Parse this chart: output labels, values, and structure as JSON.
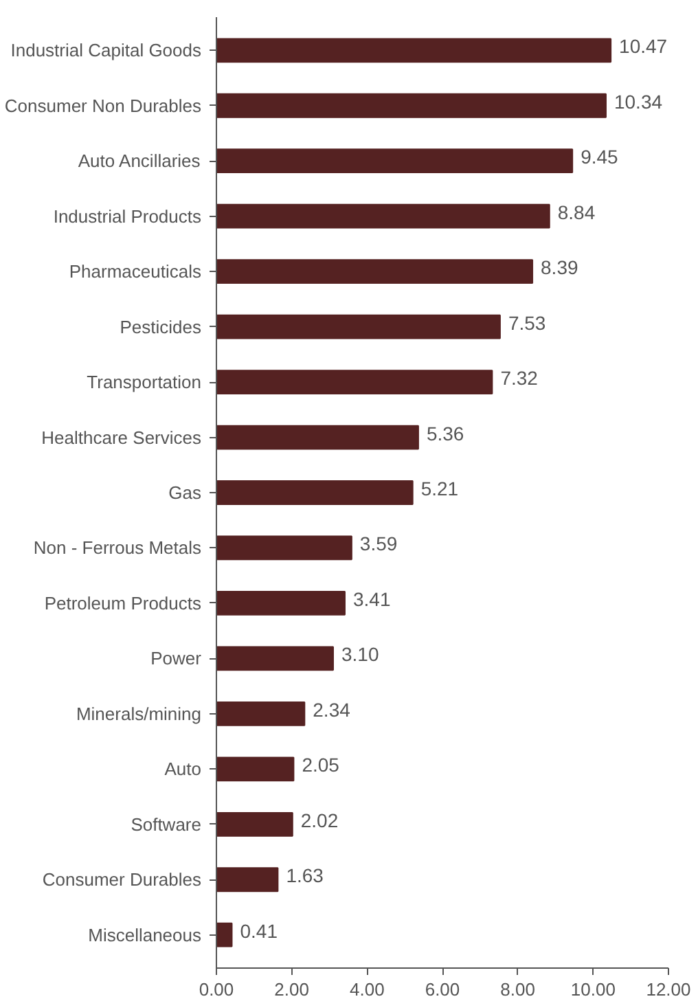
{
  "chart_data": {
    "type": "bar",
    "orientation": "horizontal",
    "categories": [
      "Industrial Capital Goods",
      "Consumer Non Durables",
      "Auto Ancillaries",
      "Industrial Products",
      "Pharmaceuticals",
      "Pesticides",
      "Transportation",
      "Healthcare Services",
      "Gas",
      "Non - Ferrous Metals",
      "Petroleum Products",
      "Power",
      "Minerals/mining",
      "Auto",
      "Software",
      "Consumer Durables",
      "Miscellaneous"
    ],
    "values": [
      10.47,
      10.34,
      9.45,
      8.84,
      8.39,
      7.53,
      7.32,
      5.36,
      5.21,
      3.59,
      3.41,
      3.1,
      2.34,
      2.05,
      2.02,
      1.63,
      0.41
    ],
    "value_labels": [
      "10.47",
      "10.34",
      "9.45",
      "8.84",
      "8.39",
      "7.53",
      "7.32",
      "5.36",
      "5.21",
      "3.59",
      "3.41",
      "3.10",
      "2.34",
      "2.05",
      "2.02",
      "1.63",
      "0.41"
    ],
    "color": "#552222",
    "xlim": [
      0,
      12
    ],
    "xticks": [
      {
        "value": 0,
        "label": "0.00"
      },
      {
        "value": 2,
        "label": "2.00"
      },
      {
        "value": 4,
        "label": "4.00"
      },
      {
        "value": 6,
        "label": "6.00"
      },
      {
        "value": 8,
        "label": "8.00"
      },
      {
        "value": 10,
        "label": "10.00"
      },
      {
        "value": 12,
        "label": "12.00"
      }
    ],
    "grid": false
  }
}
